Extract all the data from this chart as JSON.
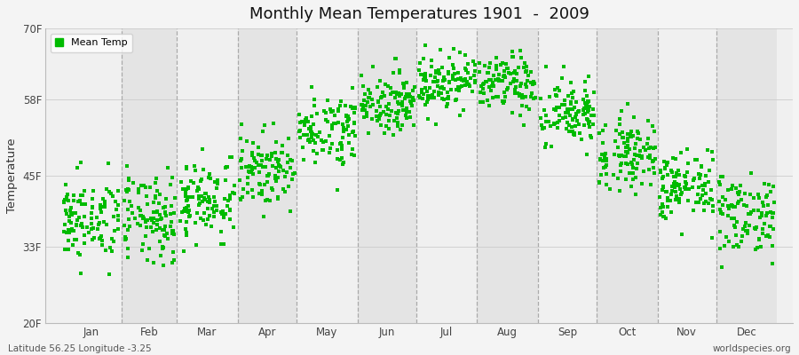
{
  "title": "Monthly Mean Temperatures 1901  -  2009",
  "ylabel": "Temperature",
  "bottom_left_text": "Latitude 56.25 Longitude -3.25",
  "bottom_right_text": "worldspecies.org",
  "dot_color": "#00bb00",
  "fig_bg_color": "#f4f4f4",
  "band_colors": [
    "#f0f0f0",
    "#e4e4e4"
  ],
  "ytick_labels": [
    "20F",
    "33F",
    "45F",
    "58F",
    "70F"
  ],
  "ytick_values": [
    20,
    33,
    45,
    58,
    70
  ],
  "ylim": [
    20,
    70
  ],
  "months": [
    "Jan",
    "Feb",
    "Mar",
    "Apr",
    "May",
    "Jun",
    "Jul",
    "Aug",
    "Sep",
    "Oct",
    "Nov",
    "Dec"
  ],
  "seed": 42,
  "year_count": 109,
  "mean_temps_f": [
    37.5,
    37.5,
    41.0,
    46.0,
    53.0,
    57.5,
    61.0,
    60.5,
    55.5,
    49.0,
    43.0,
    38.5
  ],
  "spread_f": [
    3.5,
    3.8,
    3.5,
    3.0,
    3.0,
    2.5,
    2.5,
    2.5,
    3.0,
    3.0,
    3.0,
    3.5
  ],
  "marker_size": 3.5,
  "marker": "s",
  "dpi": 100
}
